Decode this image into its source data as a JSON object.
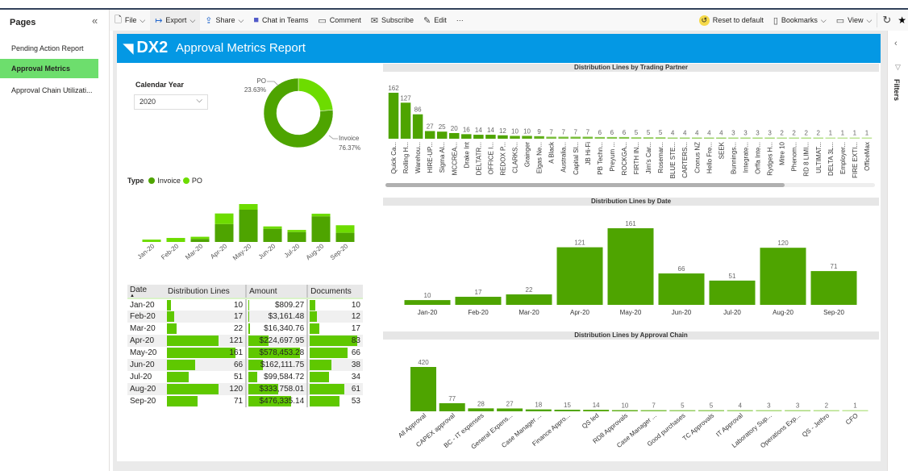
{
  "pages_pane": {
    "title": "Pages",
    "items": [
      {
        "label": "Pending Action Report"
      },
      {
        "label": "Approval Metrics",
        "active": true
      },
      {
        "label": "Approval Chain Utilizati..."
      }
    ]
  },
  "toolbar": {
    "file": "File",
    "export": "Export",
    "share": "Share",
    "chat": "Chat in Teams",
    "comment": "Comment",
    "subscribe": "Subscribe",
    "edit": "Edit",
    "more": "···",
    "reset": "Reset to default",
    "bookmarks": "Bookmarks",
    "view": "View"
  },
  "filters_pane": {
    "label": "Filters"
  },
  "banner": {
    "logo": "DX2",
    "title": "Approval Metrics Report",
    "color": "#0498e4"
  },
  "slicer": {
    "label": "Calendar Year",
    "value": "2020"
  },
  "colors": {
    "invoice": "#4ea400",
    "po": "#6ddc00"
  },
  "legend": {
    "title": "Type",
    "items": [
      "Invoice",
      "PO"
    ]
  },
  "chart_data": [
    {
      "type": "pie",
      "donut": true,
      "categories": [
        "PO",
        "Invoice"
      ],
      "values": [
        23.63,
        76.37
      ],
      "labels": [
        "23.63%",
        "76.37%"
      ]
    },
    {
      "type": "bar",
      "stacked": true,
      "categories": [
        "Jan-20",
        "Feb-20",
        "Mar-20",
        "Apr-20",
        "May-20",
        "Jun-20",
        "Jul-20",
        "Aug-20",
        "Sep-20"
      ],
      "series": [
        {
          "name": "Invoice",
          "values": [
            0,
            0,
            13,
            76,
            137,
            56,
            42,
            109,
            39
          ]
        },
        {
          "name": "PO",
          "values": [
            10,
            17,
            9,
            45,
            24,
            10,
            9,
            11,
            32
          ]
        }
      ]
    },
    {
      "type": "bar",
      "title": "Distribution Lines by Trading Partner",
      "categories": [
        "Quick Ca...",
        "Rolling H...",
        "Warehou...",
        "HIRE-UP...",
        "Sigma Al...",
        "MCCREA...",
        "Drake Int",
        "DELTATR...",
        "OFFICE I...",
        "REDOX P...",
        "CLARKS...",
        "Grainger",
        "Elgas Ne...",
        "A Black",
        "Australia...",
        "Capital Sl...",
        "JB Hi-Fi",
        "PB Techn...",
        "Preyum ...",
        "ROCKGA...",
        "FIRTH IN...",
        "Jim's Car...",
        "Rosemar...",
        "BLUE STE...",
        "CARTERS...",
        "Cronus NZ",
        "Hello Fre...",
        "SEEK",
        "Bunnings...",
        "Integrate...",
        "Orffa Inte...",
        "Rydges H...",
        "Mitre 10",
        "Phenom...",
        "RD 8 LIMI...",
        "ULTIMAT...",
        "DELTA 3L...",
        "Employer...",
        "FIRE EXTI...",
        "OfficeMax"
      ],
      "values": [
        162,
        127,
        86,
        27,
        25,
        20,
        16,
        14,
        14,
        12,
        10,
        10,
        9,
        7,
        7,
        7,
        7,
        6,
        6,
        6,
        5,
        5,
        5,
        4,
        4,
        4,
        4,
        4,
        3,
        3,
        3,
        3,
        2,
        2,
        2,
        2,
        1,
        1,
        1,
        1
      ]
    },
    {
      "type": "bar",
      "title": "Distribution Lines by Date",
      "categories": [
        "Jan-20",
        "Feb-20",
        "Mar-20",
        "Apr-20",
        "May-20",
        "Jun-20",
        "Jul-20",
        "Aug-20",
        "Sep-20"
      ],
      "values": [
        10,
        17,
        22,
        121,
        161,
        66,
        51,
        120,
        71
      ]
    },
    {
      "type": "bar",
      "title": "Distribution Lines by Approval Chain",
      "categories": [
        "All Approval",
        "CAPEX approval",
        "BC - IT expenses",
        "General Expens...",
        "Case Manager ...",
        "Finance Appro...",
        "QS led",
        "RD8 Approvals",
        "Case Manager ...",
        "Good purchases",
        "TC Approvals",
        "IT Approval",
        "Laboratory Sup...",
        "Operations Exp...",
        "QS - Jethro",
        "CFO"
      ],
      "values": [
        420,
        77,
        28,
        27,
        18,
        15,
        14,
        10,
        7,
        5,
        5,
        4,
        3,
        3,
        2,
        1
      ]
    }
  ],
  "table": {
    "columns": [
      "Date",
      "Distribution Lines",
      "Amount",
      "Documents"
    ],
    "rows": [
      [
        "Jan-20",
        10,
        "$809.27",
        10
      ],
      [
        "Feb-20",
        17,
        "$3,161.48",
        12
      ],
      [
        "Mar-20",
        22,
        "$16,340.76",
        17
      ],
      [
        "Apr-20",
        121,
        "$224,697.95",
        83
      ],
      [
        "May-20",
        161,
        "$578,453.28",
        66
      ],
      [
        "Jun-20",
        66,
        "$162,111.75",
        38
      ],
      [
        "Jul-20",
        51,
        "$99,584.72",
        34
      ],
      [
        "Aug-20",
        120,
        "$333,758.01",
        61
      ],
      [
        "Sep-20",
        71,
        "$476,335.14",
        53
      ]
    ],
    "amounts": [
      809.27,
      3161.48,
      16340.76,
      224697.95,
      578453.28,
      162111.75,
      99584.72,
      333758.01,
      476335.14
    ]
  }
}
